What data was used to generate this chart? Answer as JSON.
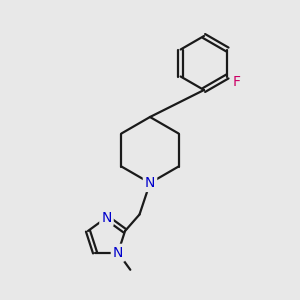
{
  "background_color": "#e8e8e8",
  "bond_color": "#1a1a1a",
  "nitrogen_color": "#0000cc",
  "fluorine_color": "#cc0066",
  "line_width": 1.6,
  "font_size_atoms": 10,
  "fig_size": [
    3.0,
    3.0
  ],
  "dpi": 100,
  "xlim": [
    0,
    10
  ],
  "ylim": [
    0,
    10
  ]
}
